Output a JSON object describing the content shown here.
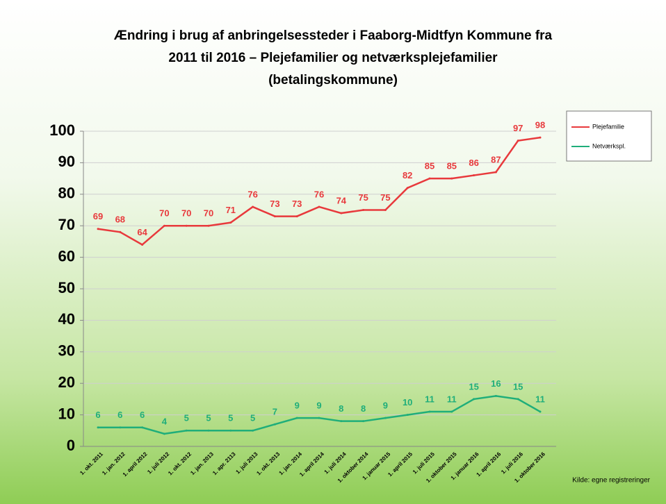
{
  "chart_data": {
    "type": "line",
    "title": [
      "Ændring i brug af anbringelsessteder i Faaborg-Midtfyn Kommune fra",
      "2011 til 2016 – Plejefamilier og netværksplejefamilier",
      "(betalingskommune)"
    ],
    "categories": [
      "1. okt. 2011",
      "1. jan. 2012",
      "1. april 2012",
      "1. juli 2012",
      "1. okt. 2012",
      "1. jan. 2013",
      "1. apr. 2113",
      "1. juli 2013",
      "1. okt. 2013",
      "1. jan. 2014",
      "1. april 2014",
      "1. juli 2014",
      "1. oktober 2014",
      "1. januar 2015",
      "1. april 2015",
      "1. juli 2015",
      "1. oktober 2015",
      "1. januar 2016",
      "1. april 2016",
      "1. juli 2016",
      "1. oktober 2016"
    ],
    "series": [
      {
        "name": "Plejefamilie",
        "color": "#e8393c",
        "values": [
          69,
          68,
          64,
          70,
          70,
          70,
          71,
          76,
          73,
          73,
          76,
          74,
          75,
          75,
          82,
          85,
          85,
          86,
          87,
          97,
          98
        ]
      },
      {
        "name": "Netværkspl.",
        "color": "#1fae7a",
        "values": [
          6,
          6,
          6,
          4,
          5,
          5,
          5,
          5,
          7,
          9,
          9,
          8,
          8,
          9,
          10,
          11,
          11,
          15,
          16,
          15,
          11
        ]
      }
    ],
    "ylim": [
      0,
      100
    ],
    "yticks": [
      0,
      10,
      20,
      30,
      40,
      50,
      60,
      70,
      80,
      90,
      100
    ],
    "grid": true,
    "legend": "upper right",
    "source": "Kilde: egne registreringer"
  }
}
